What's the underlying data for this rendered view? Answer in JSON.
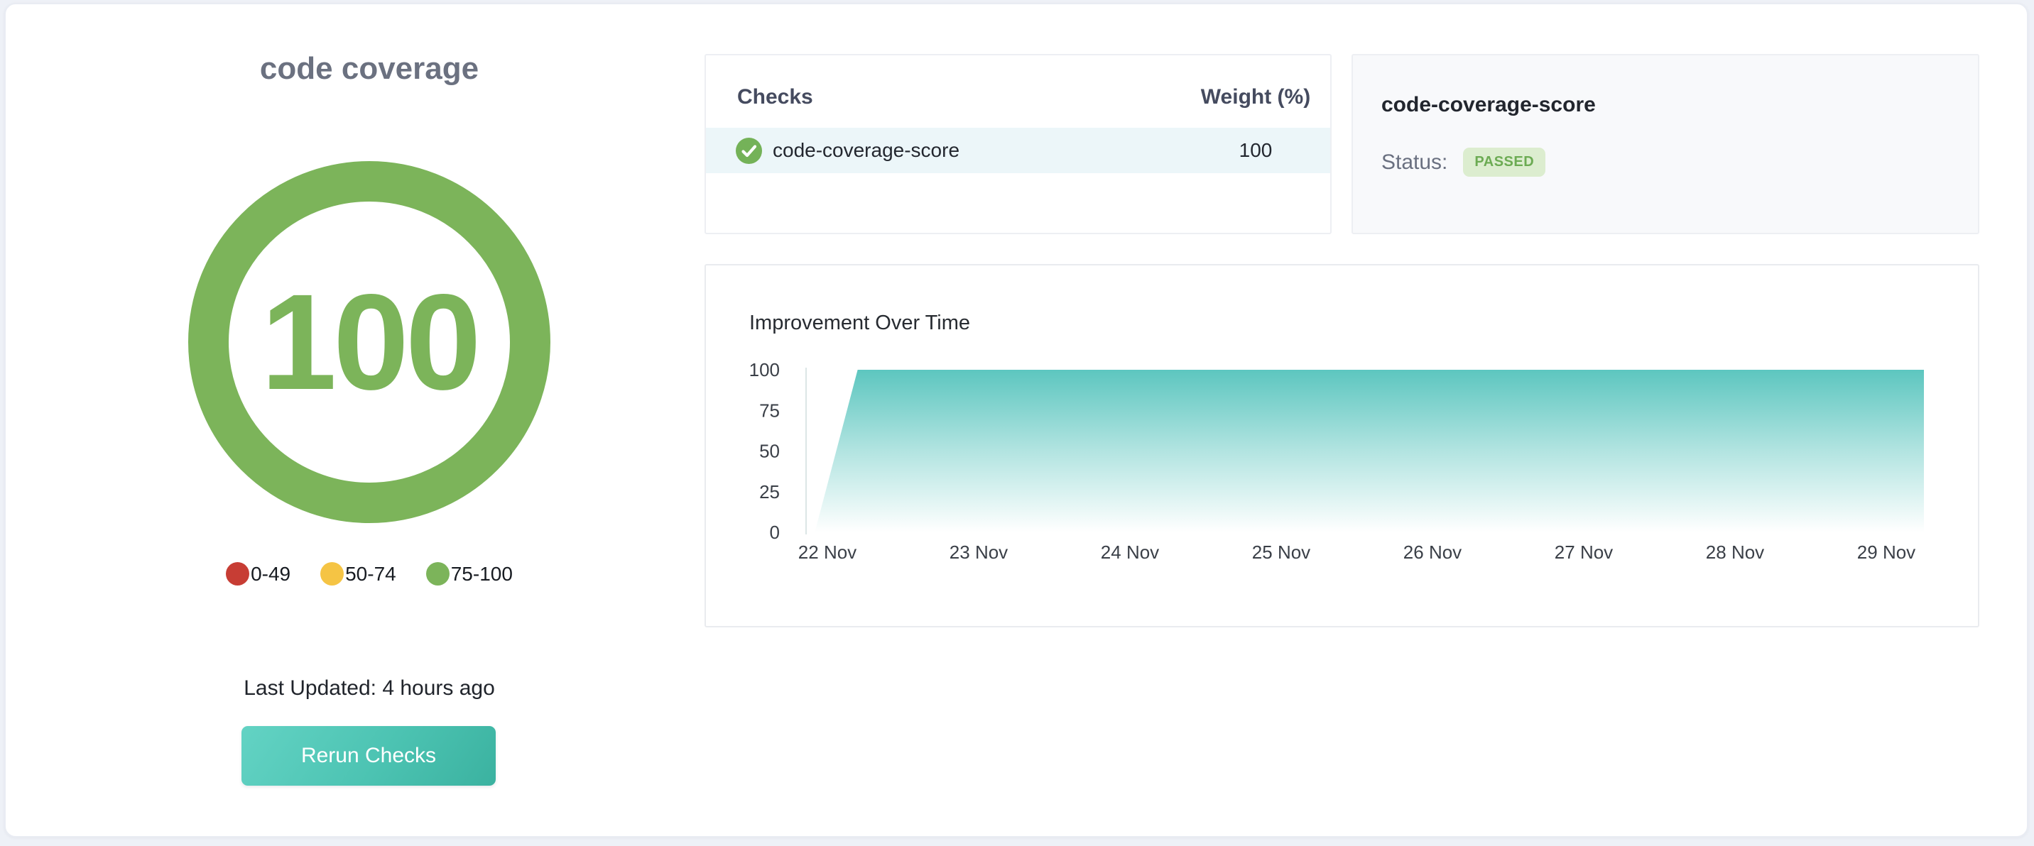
{
  "app": {
    "background_color": "#eef1f7",
    "card_background": "#ffffff"
  },
  "score_panel": {
    "title": "code coverage",
    "score": "100",
    "score_color": "#7cb45a",
    "legend": [
      {
        "label": "0-49",
        "color": "#c73d34"
      },
      {
        "label": "50-74",
        "color": "#f5c444"
      },
      {
        "label": "75-100",
        "color": "#7cb45a"
      }
    ],
    "last_updated": "Last Updated: 4 hours ago",
    "rerun_button_label": "Rerun Checks"
  },
  "checks_table": {
    "columns": [
      "Checks",
      "Weight (%)"
    ],
    "rows": [
      {
        "icon": "check-circle-icon",
        "name": "code-coverage-score",
        "weight": "100"
      }
    ],
    "row_highlight_color": "#ecf6f9"
  },
  "check_detail": {
    "title": "code-coverage-score",
    "status_label": "Status:",
    "status_value": "PASSED",
    "status_badge_bg": "#dcedcf",
    "status_badge_color": "#6cab53"
  },
  "chart_data": {
    "type": "area",
    "title": "Improvement Over Time",
    "x": [
      "22 Nov",
      "23 Nov",
      "24 Nov",
      "25 Nov",
      "26 Nov",
      "27 Nov",
      "28 Nov",
      "29 Nov"
    ],
    "series": [
      {
        "name": "improvement",
        "values": [
          0,
          100,
          100,
          100,
          100,
          100,
          100,
          100
        ]
      }
    ],
    "xlabel": "",
    "ylabel": "",
    "ylim": [
      0,
      100
    ],
    "yticks": [
      0,
      25,
      50,
      75,
      100
    ],
    "grid": false,
    "legend_position": "none",
    "area_top_color": "#54c3bc",
    "area_bottom_color": "#ffffff",
    "axis_line_color": "#dce6e6",
    "area_outline_norm": [
      [
        0.004,
        0
      ],
      [
        0.0425,
        100
      ],
      [
        1.0,
        100
      ],
      [
        1.0,
        0
      ]
    ]
  }
}
